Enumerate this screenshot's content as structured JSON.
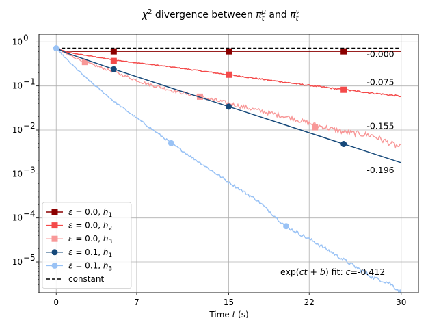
{
  "chart_data": {
    "type": "line",
    "title": "χ² divergence between π_t^μ and π_t^ν",
    "title_parts": [
      "χ",
      "2",
      " divergence between ",
      "π",
      "t",
      "μ",
      " and ",
      "π",
      "t",
      "ν"
    ],
    "xlabel": "Time t (s)",
    "xlabel_parts": [
      "Time ",
      "t",
      " (s)"
    ],
    "ylabel": "",
    "xlim": [
      -1.5,
      31.5
    ],
    "ylim": [
      2e-06,
      1.5
    ],
    "yscale": "log",
    "grid": true,
    "legend_placement": "lower-left",
    "x_ticks": [
      0,
      7,
      15,
      22,
      30
    ],
    "y_ticks": [
      {
        "value": 1,
        "base": "10",
        "exp": "0"
      },
      {
        "value": 0.1,
        "base": "10",
        "exp": "−1"
      },
      {
        "value": 0.01,
        "base": "10",
        "exp": "−2"
      },
      {
        "value": 0.001,
        "base": "10",
        "exp": "−3"
      },
      {
        "value": 0.0001,
        "base": "10",
        "exp": "−4"
      },
      {
        "value": 1e-05,
        "base": "10",
        "exp": "−5"
      }
    ],
    "series": [
      {
        "name": "ε = 0.0, h1",
        "eps": "0.0",
        "h": "h",
        "hsub": "1",
        "color": "#8b0000",
        "marker": "square",
        "dashed": false,
        "noise": 0.0,
        "points": [
          [
            0,
            0.72
          ],
          [
            0.7,
            0.62
          ],
          [
            1.5,
            0.61
          ],
          [
            5,
            0.61
          ],
          [
            15,
            0.61
          ],
          [
            25,
            0.61
          ],
          [
            30,
            0.61
          ]
        ],
        "markers": [
          [
            5,
            0.61
          ],
          [
            15,
            0.61
          ],
          [
            25,
            0.61
          ]
        ]
      },
      {
        "name": "ε = 0.0, h2",
        "eps": "0.0",
        "h": "h",
        "hsub": "2",
        "color": "#f44a4a",
        "marker": "square",
        "dashed": false,
        "noise": 0.012,
        "points": [
          [
            0,
            0.72
          ],
          [
            1,
            0.58
          ],
          [
            2.5,
            0.5
          ],
          [
            5,
            0.39
          ],
          [
            10,
            0.27
          ],
          [
            15,
            0.18
          ],
          [
            20,
            0.12
          ],
          [
            25,
            0.082
          ],
          [
            30,
            0.058
          ]
        ],
        "markers": [
          [
            5,
            0.37
          ],
          [
            15,
            0.18
          ],
          [
            25,
            0.082
          ]
        ]
      },
      {
        "name": "ε = 0.0, h3",
        "eps": "0.0",
        "h": "h",
        "hsub": "3",
        "color": "#f89898",
        "marker": "square",
        "dashed": false,
        "noise": 0.045,
        "points": [
          [
            0,
            0.72
          ],
          [
            1,
            0.52
          ],
          [
            2.5,
            0.35
          ],
          [
            5,
            0.21
          ],
          [
            7.5,
            0.12
          ],
          [
            10,
            0.08
          ],
          [
            12.5,
            0.057
          ],
          [
            15,
            0.04
          ],
          [
            17.5,
            0.028
          ],
          [
            20,
            0.02
          ],
          [
            22.5,
            0.013
          ],
          [
            25,
            0.009
          ],
          [
            27.5,
            0.0075
          ],
          [
            29,
            0.005
          ],
          [
            30,
            0.004
          ]
        ],
        "markers": [
          [
            2.5,
            0.35
          ],
          [
            12.5,
            0.057
          ],
          [
            22.5,
            0.0115
          ]
        ]
      },
      {
        "name": "ε = 0.1, h1",
        "eps": "0.1",
        "h": "h",
        "hsub": "1",
        "color": "#16497a",
        "marker": "circle",
        "dashed": false,
        "noise": 0.0,
        "points": [
          [
            0,
            0.72
          ],
          [
            1,
            0.55
          ],
          [
            5,
            0.24
          ],
          [
            10,
            0.09
          ],
          [
            15,
            0.034
          ],
          [
            20,
            0.0128
          ],
          [
            25,
            0.0048
          ],
          [
            30,
            0.0018
          ]
        ],
        "markers": [
          [
            5,
            0.24
          ],
          [
            15,
            0.034
          ],
          [
            25,
            0.0048
          ]
        ]
      },
      {
        "name": "ε = 0.1, h3",
        "eps": "0.1",
        "h": "h",
        "hsub": "3",
        "color": "#99c2f5",
        "marker": "circle",
        "dashed": false,
        "noise": 0.03,
        "points": [
          [
            0,
            0.72
          ],
          [
            1,
            0.38
          ],
          [
            2.5,
            0.16
          ],
          [
            5,
            0.045
          ],
          [
            7.5,
            0.015
          ],
          [
            10,
            0.005
          ],
          [
            12.5,
            0.0018
          ],
          [
            15,
            0.00065
          ],
          [
            17.5,
            0.00025
          ],
          [
            20,
            6.32e-05
          ],
          [
            22.5,
            2.82e-05
          ],
          [
            25,
            1.12e-05
          ],
          [
            27.5,
            4.5e-06
          ],
          [
            29,
            3.3e-06
          ],
          [
            30,
            2e-06
          ]
        ],
        "markers": [
          [
            10,
            0.005
          ],
          [
            20,
            6.5e-05
          ]
        ]
      },
      {
        "name": "constant",
        "color": "#000000",
        "marker": "none",
        "dashed": true,
        "noise": 0.0,
        "points": [
          [
            0,
            0.72
          ],
          [
            30,
            0.72
          ]
        ],
        "markers": []
      }
    ],
    "annotations": [
      {
        "text": "-0.000",
        "x": 27.0,
        "y": 0.45
      },
      {
        "text": "-0.075",
        "x": 27.0,
        "y": 0.105
      },
      {
        "text": "-0.155",
        "x": 27.0,
        "y": 0.0105
      },
      {
        "text": "-0.196",
        "x": 27.0,
        "y": 0.00105
      }
    ],
    "fit_note": {
      "prefix": "exp(",
      "ct": "ct",
      "plus": " + ",
      "b": "b",
      "suffix": ") fit: ",
      "c": "c",
      "eq": "=",
      "value": "-0.412"
    },
    "legend": {
      "eps_symbol": "ε",
      "equals": " = ",
      "sep": ", ",
      "constant_label": "constant"
    }
  }
}
